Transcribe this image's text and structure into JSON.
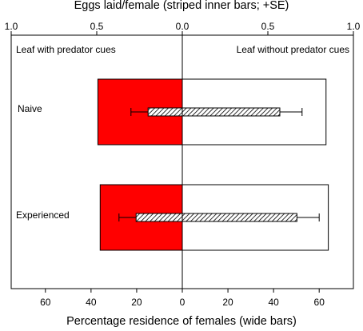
{
  "chart_data": {
    "type": "bar",
    "orientation": "horizontal-diverging",
    "top_axis": {
      "label": "Eggs laid/female (striped inner bars; +SE)",
      "ticks": [
        "1.0",
        "0.5",
        "0.0",
        "0.5",
        "1.0"
      ],
      "tick_values": [
        -1.0,
        -0.5,
        0.0,
        0.5,
        1.0
      ],
      "range": [
        -1.0,
        1.0
      ]
    },
    "bottom_axis": {
      "label": "Percentage residence of females (wide bars)",
      "ticks": [
        "60",
        "40",
        "20",
        "0",
        "20",
        "40",
        "60"
      ],
      "tick_values": [
        -60,
        -40,
        -20,
        0,
        20,
        40,
        60
      ],
      "range": [
        -75,
        75
      ]
    },
    "side_labels": {
      "left": "Leaf with predator cues",
      "right": "Leaf without predator cues"
    },
    "categories": [
      "Naive",
      "Experienced"
    ],
    "residence_percent": {
      "with_predator_cues": [
        37,
        36
      ],
      "without_predator_cues": [
        63,
        64
      ]
    },
    "eggs_laid_per_female": {
      "with_predator_cues": [
        0.2,
        0.27
      ],
      "without_predator_cues": [
        0.57,
        0.67
      ],
      "se_with_predator_cues": [
        0.1,
        0.1
      ],
      "se_without_predator_cues": [
        0.13,
        0.13
      ]
    },
    "colors": {
      "with_predator_cues_fill": "#ff0000",
      "without_predator_cues_fill": "#ffffff",
      "outline": "#000000"
    }
  }
}
